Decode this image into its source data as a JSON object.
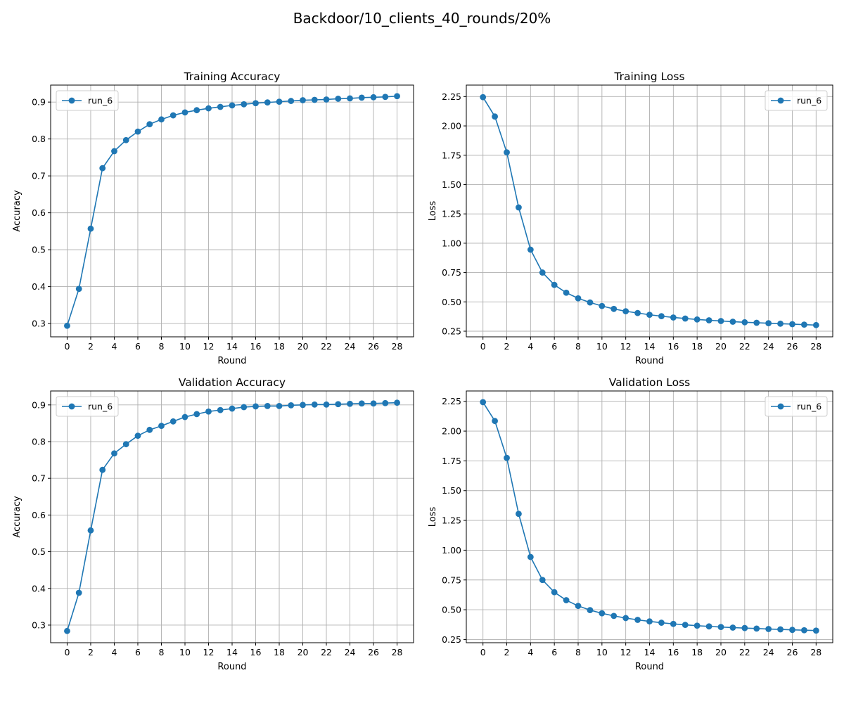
{
  "figure": {
    "title": "Backdoor/10_clients_40_rounds/20%"
  },
  "chart_data": [
    {
      "type": "line",
      "title": "Training Accuracy",
      "xlabel": "Round",
      "ylabel": "Accuracy",
      "xlim": [
        -1.4,
        29.4
      ],
      "ylim": [
        0.264,
        0.946
      ],
      "xticks": [
        0,
        2,
        4,
        6,
        8,
        10,
        12,
        14,
        16,
        18,
        20,
        22,
        24,
        26,
        28
      ],
      "yticks": [
        0.3,
        0.4,
        0.5,
        0.6,
        0.7,
        0.8,
        0.9
      ],
      "ytick_labels": [
        "0.3",
        "0.4",
        "0.5",
        "0.6",
        "0.7",
        "0.8",
        "0.9"
      ],
      "grid": true,
      "legend_position": "upper left",
      "color": "#1f77b4",
      "series": [
        {
          "name": "run_6",
          "x": [
            0,
            1,
            2,
            3,
            4,
            5,
            6,
            7,
            8,
            9,
            10,
            11,
            12,
            13,
            14,
            15,
            16,
            17,
            18,
            19,
            20,
            21,
            22,
            23,
            24,
            25,
            26,
            27,
            28
          ],
          "values": [
            0.294,
            0.394,
            0.557,
            0.721,
            0.767,
            0.797,
            0.82,
            0.84,
            0.853,
            0.864,
            0.872,
            0.878,
            0.883,
            0.887,
            0.891,
            0.894,
            0.897,
            0.899,
            0.901,
            0.903,
            0.905,
            0.906,
            0.907,
            0.909,
            0.91,
            0.912,
            0.913,
            0.914,
            0.916
          ]
        }
      ]
    },
    {
      "type": "line",
      "title": "Training Loss",
      "xlabel": "Round",
      "ylabel": "Loss",
      "xlim": [
        -1.4,
        29.4
      ],
      "ylim": [
        0.202,
        2.348
      ],
      "xticks": [
        0,
        2,
        4,
        6,
        8,
        10,
        12,
        14,
        16,
        18,
        20,
        22,
        24,
        26,
        28
      ],
      "yticks": [
        0.25,
        0.5,
        0.75,
        1.0,
        1.25,
        1.5,
        1.75,
        2.0,
        2.25
      ],
      "ytick_labels": [
        "0.25",
        "0.50",
        "0.75",
        "1.00",
        "1.25",
        "1.50",
        "1.75",
        "2.00",
        "2.25"
      ],
      "grid": true,
      "legend_position": "upper right",
      "color": "#1f77b4",
      "series": [
        {
          "name": "run_6",
          "x": [
            0,
            1,
            2,
            3,
            4,
            5,
            6,
            7,
            8,
            9,
            10,
            11,
            12,
            13,
            14,
            15,
            16,
            17,
            18,
            19,
            20,
            21,
            22,
            23,
            24,
            25,
            26,
            27,
            28
          ],
          "values": [
            2.245,
            2.08,
            1.775,
            1.305,
            0.945,
            0.75,
            0.645,
            0.578,
            0.53,
            0.495,
            0.465,
            0.44,
            0.42,
            0.405,
            0.39,
            0.378,
            0.367,
            0.358,
            0.35,
            0.343,
            0.337,
            0.331,
            0.326,
            0.322,
            0.318,
            0.314,
            0.31,
            0.306,
            0.302
          ]
        }
      ]
    },
    {
      "type": "line",
      "title": "Validation Accuracy",
      "xlabel": "Round",
      "ylabel": "Accuracy",
      "xlim": [
        -1.4,
        29.4
      ],
      "ylim": [
        0.252,
        0.938
      ],
      "xticks": [
        0,
        2,
        4,
        6,
        8,
        10,
        12,
        14,
        16,
        18,
        20,
        22,
        24,
        26,
        28
      ],
      "yticks": [
        0.3,
        0.4,
        0.5,
        0.6,
        0.7,
        0.8,
        0.9
      ],
      "ytick_labels": [
        "0.3",
        "0.4",
        "0.5",
        "0.6",
        "0.7",
        "0.8",
        "0.9"
      ],
      "grid": true,
      "legend_position": "upper left",
      "color": "#1f77b4",
      "series": [
        {
          "name": "run_6",
          "x": [
            0,
            1,
            2,
            3,
            4,
            5,
            6,
            7,
            8,
            9,
            10,
            11,
            12,
            13,
            14,
            15,
            16,
            17,
            18,
            19,
            20,
            21,
            22,
            23,
            24,
            25,
            26,
            27,
            28
          ],
          "values": [
            0.284,
            0.388,
            0.558,
            0.723,
            0.768,
            0.793,
            0.816,
            0.832,
            0.843,
            0.855,
            0.867,
            0.875,
            0.882,
            0.886,
            0.89,
            0.894,
            0.896,
            0.897,
            0.897,
            0.899,
            0.9,
            0.901,
            0.901,
            0.902,
            0.903,
            0.904,
            0.904,
            0.905,
            0.906
          ]
        }
      ]
    },
    {
      "type": "line",
      "title": "Validation Loss",
      "xlabel": "Round",
      "ylabel": "Loss",
      "xlim": [
        -1.4,
        29.4
      ],
      "ylim": [
        0.223,
        2.337
      ],
      "xticks": [
        0,
        2,
        4,
        6,
        8,
        10,
        12,
        14,
        16,
        18,
        20,
        22,
        24,
        26,
        28
      ],
      "yticks": [
        0.25,
        0.5,
        0.75,
        1.0,
        1.25,
        1.5,
        1.75,
        2.0,
        2.25
      ],
      "ytick_labels": [
        "0.25",
        "0.50",
        "0.75",
        "1.00",
        "1.25",
        "1.50",
        "1.75",
        "2.00",
        "2.25"
      ],
      "grid": true,
      "legend_position": "upper right",
      "color": "#1f77b4",
      "series": [
        {
          "name": "run_6",
          "x": [
            0,
            1,
            2,
            3,
            4,
            5,
            6,
            7,
            8,
            9,
            10,
            11,
            12,
            13,
            14,
            15,
            16,
            17,
            18,
            19,
            20,
            21,
            22,
            23,
            24,
            25,
            26,
            27,
            28
          ],
          "values": [
            2.243,
            2.085,
            1.775,
            1.305,
            0.943,
            0.75,
            0.647,
            0.58,
            0.532,
            0.497,
            0.47,
            0.448,
            0.43,
            0.415,
            0.402,
            0.391,
            0.381,
            0.373,
            0.366,
            0.36,
            0.355,
            0.35,
            0.346,
            0.342,
            0.338,
            0.335,
            0.331,
            0.328,
            0.325
          ]
        }
      ]
    }
  ]
}
